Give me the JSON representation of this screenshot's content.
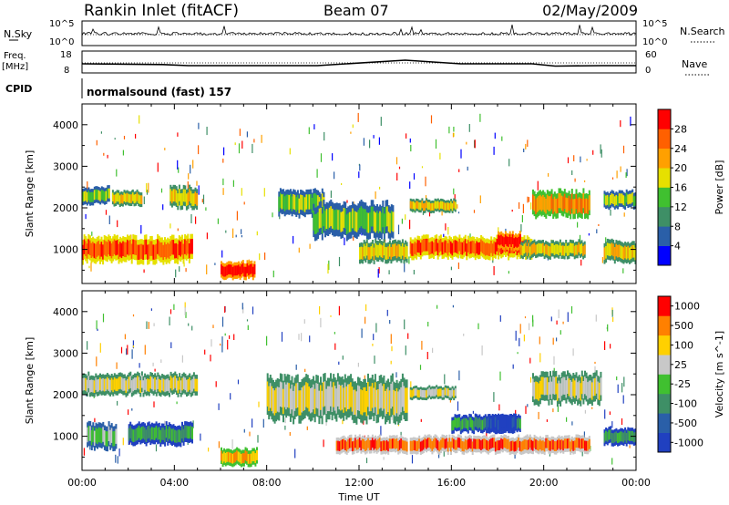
{
  "header": {
    "station": "Rankin Inlet (fitACF)",
    "beam": "Beam 07",
    "date": "02/May/2009"
  },
  "panels": {
    "nsky_label": "N.Sky",
    "nsky_ticks": [
      "10^5",
      "10^0"
    ],
    "nsearch_label": "N.Search",
    "nsearch_ticks": [
      "10^5",
      "10^0"
    ],
    "freq_label_top": "Freq.",
    "freq_label_unit": "[MHz]",
    "freq_ticks": [
      "18",
      "8"
    ],
    "nave_label": "Nave",
    "nave_ticks": [
      "60",
      "0"
    ],
    "cpid_label": "CPID",
    "cpid_text": "normalsound (fast) 157"
  },
  "chart_data": [
    {
      "type": "heatmap",
      "title": "",
      "xlabel": "Time UT",
      "ylabel": "Slant Range [km]",
      "x_ticks": [
        "00:00",
        "04:00",
        "08:00",
        "12:00",
        "16:00",
        "20:00",
        "00:00"
      ],
      "y_ticks": [
        "1000",
        "2000",
        "3000",
        "4000"
      ],
      "xlim": [
        0,
        24
      ],
      "ylim": [
        180,
        4500
      ],
      "colorbar": {
        "label": "Power [dB]",
        "ticks": [
          "4",
          "8",
          "12",
          "16",
          "20",
          "24",
          "28"
        ],
        "colors": [
          "#0000ff",
          "#2a5fa8",
          "#3e8f66",
          "#40c030",
          "#e6e000",
          "#ffa000",
          "#ff6000",
          "#ff0000"
        ]
      },
      "bands": [
        {
          "t0": 0.0,
          "t1": 1.2,
          "r0": 2100,
          "r1": 2500,
          "level": 3
        },
        {
          "t0": 1.3,
          "t1": 2.6,
          "r0": 2050,
          "r1": 2400,
          "level": 4
        },
        {
          "t0": 3.8,
          "t1": 5.0,
          "r0": 2000,
          "r1": 2500,
          "level": 4
        },
        {
          "t0": 0.0,
          "t1": 4.8,
          "r0": 700,
          "r1": 1300,
          "level": 6
        },
        {
          "t0": 6.0,
          "t1": 7.5,
          "r0": 300,
          "r1": 700,
          "level": 7
        },
        {
          "t0": 8.5,
          "t1": 10.5,
          "r0": 1800,
          "r1": 2400,
          "level": 3
        },
        {
          "t0": 10.0,
          "t1": 13.5,
          "r0": 1300,
          "r1": 2100,
          "level": 3
        },
        {
          "t0": 12.0,
          "t1": 14.1,
          "r0": 700,
          "r1": 1200,
          "level": 4
        },
        {
          "t0": 14.2,
          "t1": 16.2,
          "r0": 1900,
          "r1": 2200,
          "level": 4
        },
        {
          "t0": 14.2,
          "t1": 19.5,
          "r0": 800,
          "r1": 1300,
          "level": 6
        },
        {
          "t0": 18.0,
          "t1": 19.0,
          "r0": 1000,
          "r1": 1400,
          "level": 7
        },
        {
          "t0": 19.5,
          "t1": 22.0,
          "r0": 1800,
          "r1": 2400,
          "level": 5
        },
        {
          "t0": 19.0,
          "t1": 21.8,
          "r0": 800,
          "r1": 1200,
          "level": 4
        },
        {
          "t0": 22.6,
          "t1": 24.0,
          "r0": 700,
          "r1": 1200,
          "level": 4
        },
        {
          "t0": 22.6,
          "t1": 24.0,
          "r0": 2000,
          "r1": 2400,
          "level": 3
        }
      ]
    },
    {
      "type": "heatmap",
      "title": "",
      "xlabel": "Time UT",
      "ylabel": "Slant Range [km]",
      "x_ticks": [
        "00:00",
        "04:00",
        "08:00",
        "12:00",
        "16:00",
        "20:00",
        "00:00"
      ],
      "y_ticks": [
        "1000",
        "2000",
        "3000",
        "4000"
      ],
      "xlim": [
        0,
        24
      ],
      "ylim": [
        180,
        4500
      ],
      "colorbar": {
        "label": "Velocity [m s^-1]",
        "ticks": [
          "1000",
          "500",
          "100",
          "25",
          "-25",
          "-100",
          "-500",
          "-1000"
        ],
        "colors": [
          "#2040c0",
          "#2a5fa8",
          "#3e8f66",
          "#40c030",
          "#c8c8c8",
          "#ffd000",
          "#ff8000",
          "#ff0000"
        ]
      },
      "bands": [
        {
          "t0": 0.0,
          "t1": 5.0,
          "r0": 2000,
          "r1": 2500,
          "level": 4
        },
        {
          "t0": 0.2,
          "t1": 1.5,
          "r0": 700,
          "r1": 1300,
          "level": 3
        },
        {
          "t0": 2.0,
          "t1": 4.8,
          "r0": 800,
          "r1": 1300,
          "level": 2
        },
        {
          "t0": 6.0,
          "t1": 7.6,
          "r0": 300,
          "r1": 700,
          "level": 5
        },
        {
          "t0": 8.0,
          "t1": 14.1,
          "r0": 1400,
          "r1": 2400,
          "level": 4
        },
        {
          "t0": 11.0,
          "t1": 14.1,
          "r0": 600,
          "r1": 1000,
          "level": 6
        },
        {
          "t0": 14.2,
          "t1": 16.2,
          "r0": 1900,
          "r1": 2200,
          "level": 4
        },
        {
          "t0": 14.2,
          "t1": 19.5,
          "r0": 600,
          "r1": 1000,
          "level": 6
        },
        {
          "t0": 16.0,
          "t1": 19.0,
          "r0": 1100,
          "r1": 1500,
          "level": 2
        },
        {
          "t0": 17.5,
          "t1": 18.8,
          "r0": 1100,
          "r1": 1500,
          "level": 0
        },
        {
          "t0": 19.5,
          "t1": 22.5,
          "r0": 1800,
          "r1": 2500,
          "level": 4
        },
        {
          "t0": 19.0,
          "t1": 22.0,
          "r0": 600,
          "r1": 1000,
          "level": 6
        },
        {
          "t0": 22.6,
          "t1": 24.0,
          "r0": 800,
          "r1": 1200,
          "level": 2
        }
      ]
    }
  ]
}
